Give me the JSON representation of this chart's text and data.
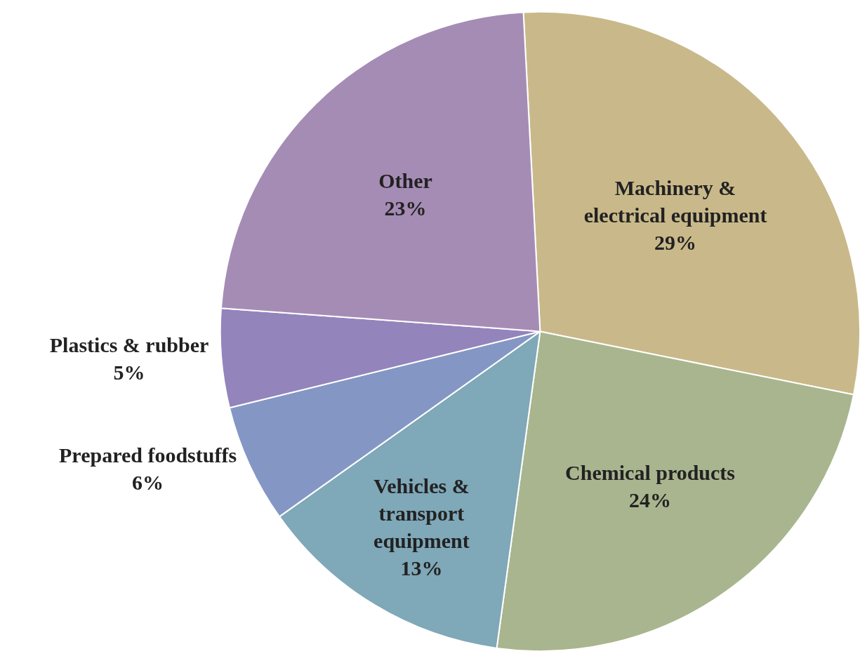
{
  "chart_data": {
    "type": "pie",
    "categories": [
      "Machinery &\nelectrical equipment",
      "Chemical products",
      "Vehicles &\ntransport\nequipment",
      "Prepared foodstuffs",
      "Plastics & rubber",
      "Other"
    ],
    "values": [
      29,
      24,
      13,
      6,
      5,
      23
    ],
    "value_labels": [
      "29%",
      "24%",
      "13%",
      "6%",
      "5%",
      "23%"
    ],
    "colors": [
      "#c9b98a",
      "#a9b58e",
      "#7fa8b8",
      "#8497c4",
      "#9484bc",
      "#a58cb5"
    ],
    "legend": false
  }
}
